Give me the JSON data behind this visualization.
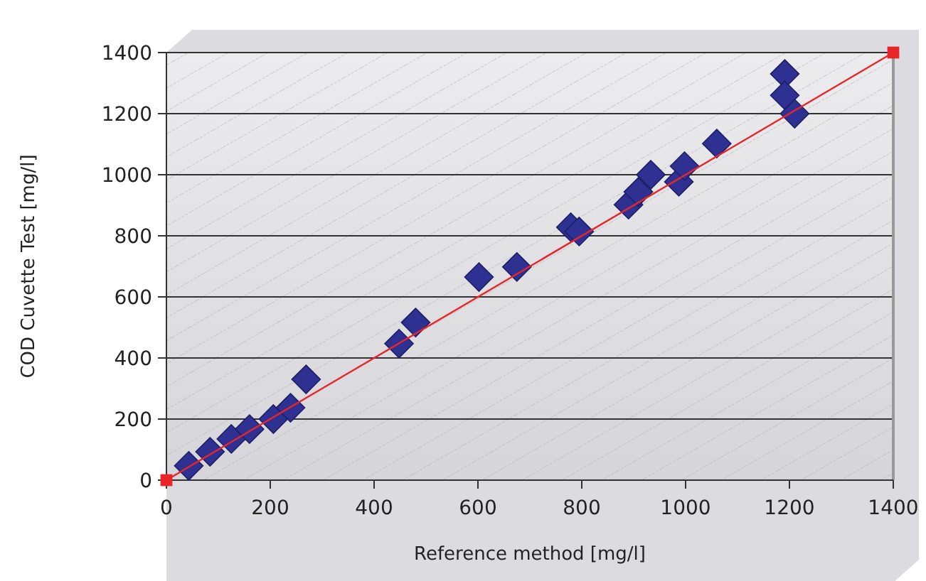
{
  "chart_data": {
    "type": "scatter",
    "xlabel": "Reference method [mg/l]",
    "ylabel": "COD Cuvette Test [mg/l]",
    "xlim": [
      0,
      1400
    ],
    "xticks": [
      0,
      200,
      400,
      600,
      800,
      1000,
      1200,
      1400
    ],
    "ylim": [
      0,
      1400
    ],
    "yticks": [
      0,
      200,
      400,
      600,
      800,
      1000,
      1200,
      1400
    ],
    "grid": "y",
    "series": [
      {
        "color": "#2e3192",
        "marker": "diamond",
        "x": [
          43,
          84,
          125,
          160,
          206,
          239,
          269,
          448,
          480,
          602,
          675,
          779,
          795,
          890,
          909,
          933,
          987,
          998,
          1060,
          1191,
          1191,
          1210
        ],
        "values": [
          47,
          93,
          135,
          167,
          200,
          237,
          330,
          447,
          516,
          665,
          698,
          828,
          814,
          902,
          944,
          1000,
          977,
          1028,
          1102,
          1330,
          1260,
          1200
        ]
      },
      {
        "type": "line",
        "color": "#e8262a",
        "marker": "square",
        "line_style": "solid",
        "x": [
          0,
          1400
        ],
        "values": [
          0,
          1400
        ]
      }
    ]
  }
}
